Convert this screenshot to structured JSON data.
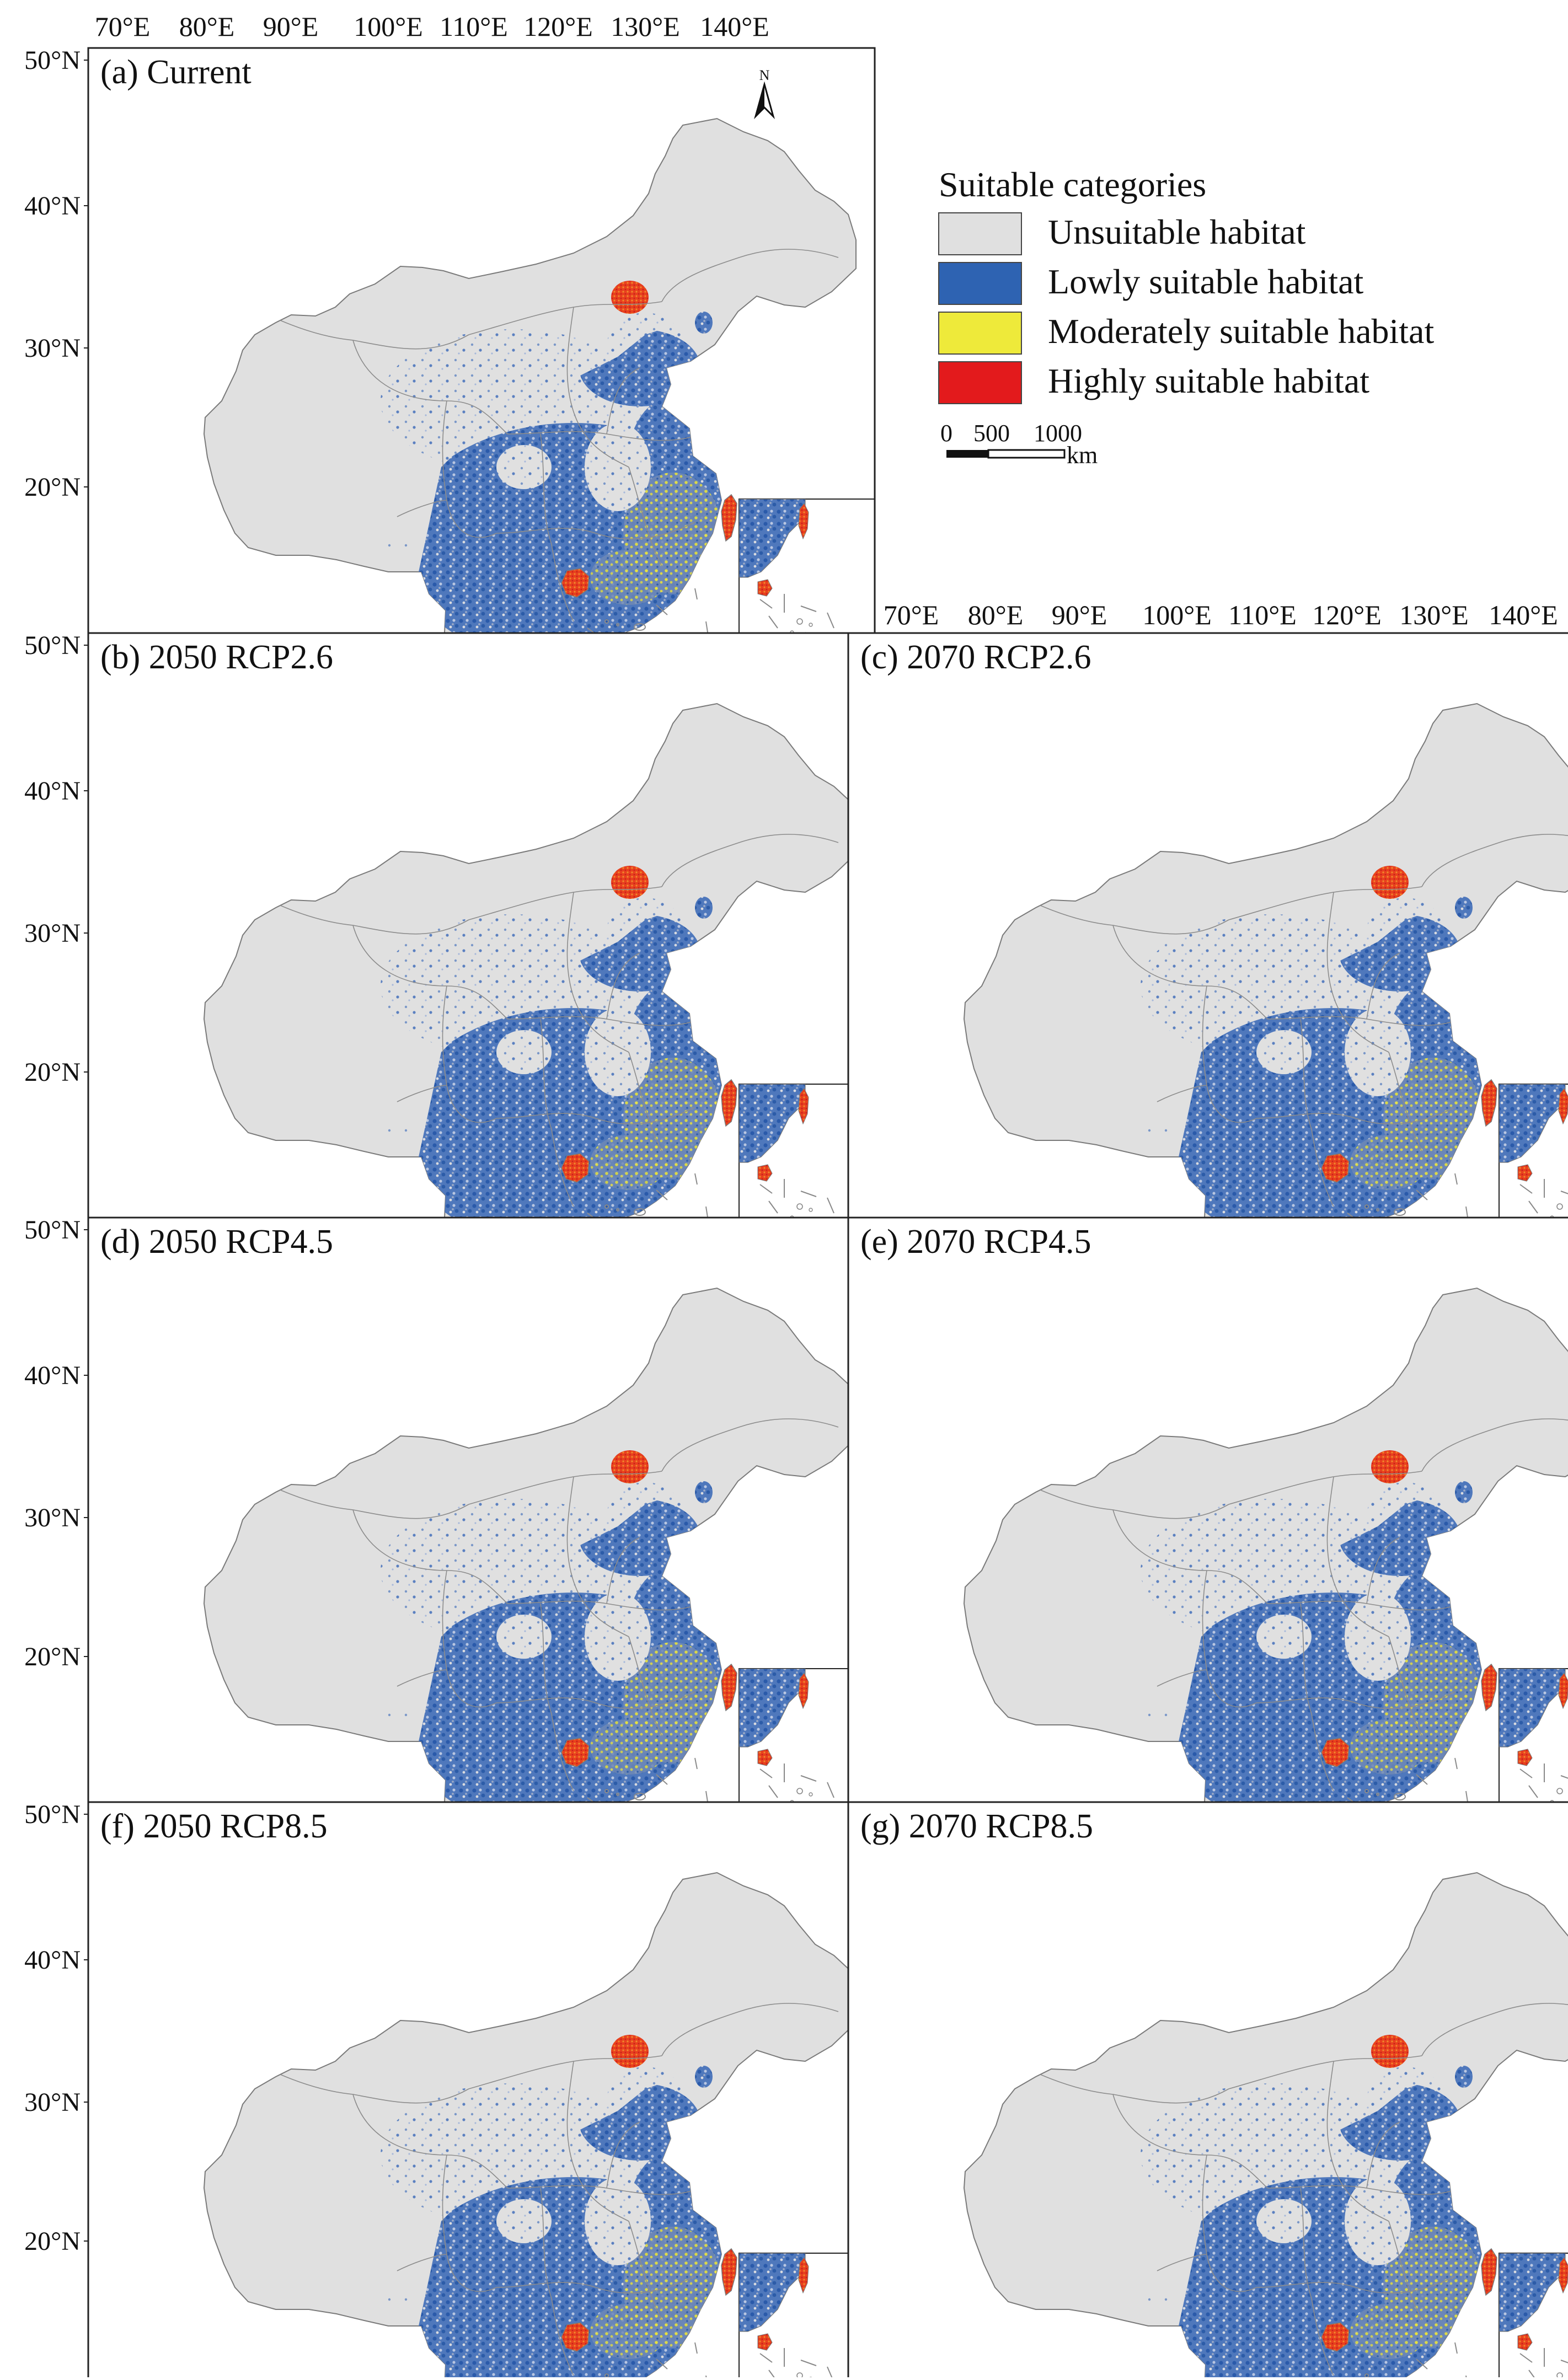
{
  "figure": {
    "lon_ticks": [
      "70°E",
      "80°E",
      "90°E",
      "100°E",
      "110°E",
      "120°E",
      "130°E",
      "140°E"
    ],
    "lat_ticks": [
      "50°N",
      "40°N",
      "30°N",
      "20°N"
    ],
    "north_arrow_label": "N",
    "legend": {
      "title": "Suitable categories",
      "items": [
        {
          "label": "Unsuitable habitat",
          "color": "#e0e0e0"
        },
        {
          "label": "Lowly suitable habitat",
          "color": "#2e63b2"
        },
        {
          "label": "Moderately suitable habitat",
          "color": "#eeea3a"
        },
        {
          "label": "Highly suitable habitat",
          "color": "#e31a1c"
        }
      ],
      "scale_ticks": [
        "0",
        "500",
        "1000"
      ],
      "scale_unit": "km"
    },
    "panels": [
      {
        "id": "a",
        "title": "(a) Current"
      },
      {
        "id": "b",
        "title": "(b) 2050 RCP2.6"
      },
      {
        "id": "c",
        "title": "(c) 2070 RCP2.6"
      },
      {
        "id": "d",
        "title": "(d) 2050 RCP4.5"
      },
      {
        "id": "e",
        "title": "(e) 2070 RCP4.5"
      },
      {
        "id": "f",
        "title": "(f) 2050 RCP8.5"
      },
      {
        "id": "g",
        "title": "(g) 2070 RCP8.5"
      }
    ]
  }
}
